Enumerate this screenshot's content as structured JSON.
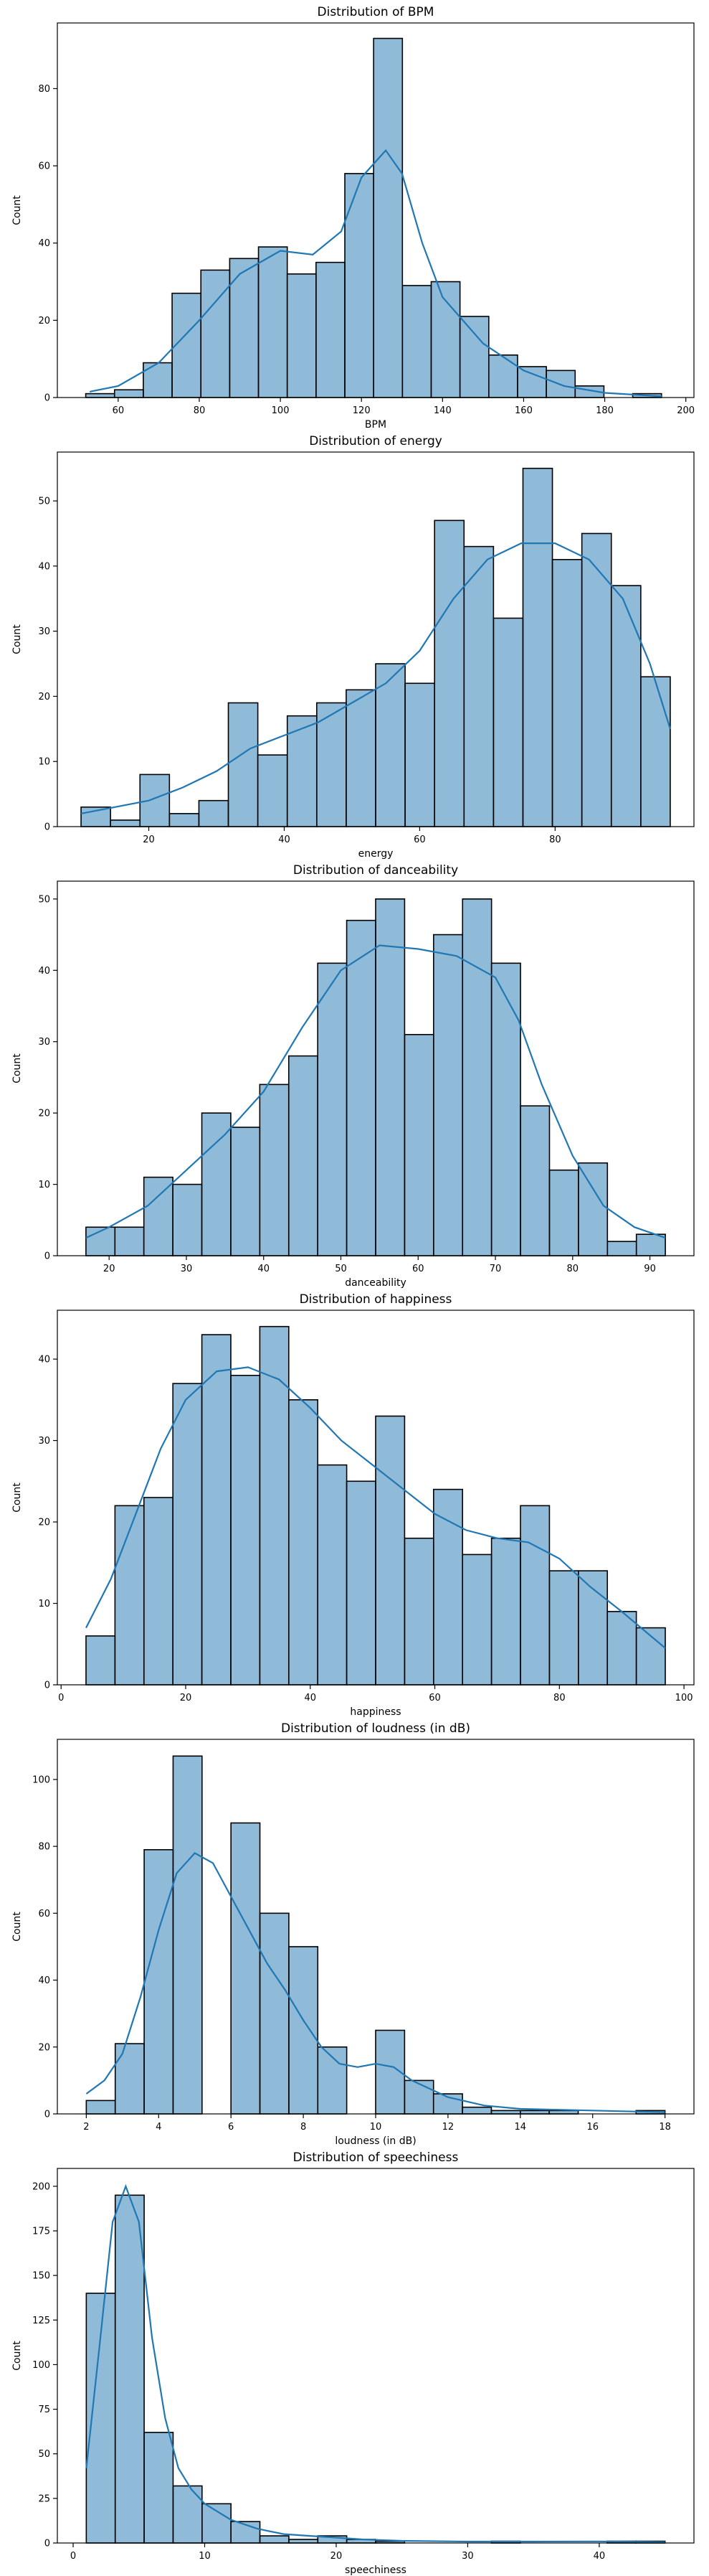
{
  "chart_data": [
    {
      "type": "bar",
      "title": "Distribution of BPM",
      "xlabel": "BPM",
      "ylabel": "Count",
      "xlim": [
        45,
        202
      ],
      "ylim": [
        0,
        97
      ],
      "xticks": [
        60,
        80,
        100,
        120,
        140,
        160,
        180,
        200
      ],
      "yticks": [
        0,
        20,
        40,
        60,
        80
      ],
      "bin_edges": [
        52,
        59.1,
        66.2,
        73.3,
        80.4,
        87.5,
        94.6,
        101.7,
        108.8,
        115.9,
        123,
        130.1,
        137.2,
        144.3,
        151.4,
        158.5,
        165.6,
        172.7,
        179.8,
        186.9,
        194
      ],
      "values": [
        1,
        2,
        9,
        27,
        33,
        36,
        39,
        32,
        35,
        58,
        93,
        29,
        30,
        21,
        11,
        8,
        7,
        3,
        0,
        1
      ],
      "kde": [
        [
          53,
          1.5
        ],
        [
          60,
          3
        ],
        [
          70,
          9
        ],
        [
          80,
          20
        ],
        [
          90,
          32
        ],
        [
          100,
          38
        ],
        [
          108,
          37
        ],
        [
          115,
          43
        ],
        [
          120,
          57
        ],
        [
          126,
          64
        ],
        [
          130,
          58
        ],
        [
          135,
          40
        ],
        [
          140,
          26
        ],
        [
          150,
          14
        ],
        [
          160,
          7
        ],
        [
          170,
          3
        ],
        [
          180,
          1.2
        ],
        [
          194,
          0.3
        ]
      ],
      "color": "#1f77b4"
    },
    {
      "type": "bar",
      "title": "Distribution of energy",
      "xlabel": "energy",
      "ylabel": "Count",
      "xlim": [
        6.5,
        100.5
      ],
      "ylim": [
        0,
        57.5
      ],
      "xticks": [
        20,
        40,
        60,
        80
      ],
      "yticks": [
        0,
        10,
        20,
        30,
        40,
        50
      ],
      "bin_edges": [
        10,
        14.35,
        18.7,
        23.05,
        27.4,
        31.75,
        36.1,
        40.45,
        44.8,
        49.15,
        53.5,
        57.85,
        62.2,
        66.55,
        70.9,
        75.25,
        79.6,
        83.95,
        88.3,
        92.65,
        97
      ],
      "values": [
        3,
        1,
        8,
        2,
        4,
        19,
        11,
        17,
        19,
        21,
        25,
        22,
        47,
        43,
        32,
        55,
        41,
        45,
        37,
        23
      ],
      "kde": [
        [
          10,
          2
        ],
        [
          15,
          3
        ],
        [
          20,
          4
        ],
        [
          25,
          6
        ],
        [
          30,
          8.5
        ],
        [
          35,
          12
        ],
        [
          40,
          14
        ],
        [
          45,
          16
        ],
        [
          50,
          19
        ],
        [
          55,
          22
        ],
        [
          60,
          27
        ],
        [
          65,
          35
        ],
        [
          70,
          41
        ],
        [
          75,
          43.5
        ],
        [
          80,
          43.5
        ],
        [
          85,
          41
        ],
        [
          90,
          35
        ],
        [
          94,
          25
        ],
        [
          97,
          15
        ]
      ],
      "color": "#1f77b4"
    },
    {
      "type": "bar",
      "title": "Distribution of danceability",
      "xlabel": "danceability",
      "ylabel": "Count",
      "xlim": [
        13.3,
        95.7
      ],
      "ylim": [
        0,
        52.5
      ],
      "xticks": [
        20,
        30,
        40,
        50,
        60,
        70,
        80,
        90
      ],
      "yticks": [
        0,
        10,
        20,
        30,
        40,
        50
      ],
      "bin_edges": [
        17,
        20.75,
        24.5,
        28.25,
        32,
        35.75,
        39.5,
        43.25,
        47,
        50.75,
        54.5,
        58.25,
        62,
        65.75,
        69.5,
        73.25,
        77,
        80.75,
        84.5,
        88.25,
        92
      ],
      "values": [
        4,
        4,
        11,
        10,
        20,
        18,
        24,
        28,
        41,
        47,
        50,
        31,
        45,
        50,
        41,
        21,
        12,
        13,
        2,
        3
      ],
      "kde": [
        [
          17,
          2.5
        ],
        [
          20,
          4
        ],
        [
          25,
          7
        ],
        [
          30,
          12
        ],
        [
          35,
          17
        ],
        [
          40,
          23
        ],
        [
          45,
          32
        ],
        [
          50,
          40
        ],
        [
          55,
          43.5
        ],
        [
          60,
          43
        ],
        [
          65,
          42
        ],
        [
          70,
          39
        ],
        [
          73,
          33
        ],
        [
          76,
          24
        ],
        [
          80,
          14
        ],
        [
          84,
          7
        ],
        [
          88,
          4
        ],
        [
          92,
          2.5
        ]
      ],
      "color": "#1f77b4"
    },
    {
      "type": "bar",
      "title": "Distribution of happiness",
      "xlabel": "happiness",
      "ylabel": "Count",
      "xlim": [
        -0.6,
        101.6
      ],
      "ylim": [
        0,
        46
      ],
      "xticks": [
        0,
        20,
        40,
        60,
        80,
        100
      ],
      "yticks": [
        0,
        10,
        20,
        30,
        40
      ],
      "bin_edges": [
        4,
        8.65,
        13.3,
        17.95,
        22.6,
        27.25,
        31.9,
        36.55,
        41.2,
        45.85,
        50.5,
        55.15,
        59.8,
        64.45,
        69.1,
        73.75,
        78.4,
        83.05,
        87.7,
        92.35,
        97
      ],
      "values": [
        6,
        22,
        23,
        37,
        43,
        38,
        44,
        35,
        27,
        25,
        33,
        18,
        24,
        16,
        18,
        22,
        14,
        14,
        9,
        7
      ],
      "kde": [
        [
          4,
          7
        ],
        [
          8,
          13
        ],
        [
          12,
          21
        ],
        [
          16,
          29
        ],
        [
          20,
          35
        ],
        [
          25,
          38.5
        ],
        [
          30,
          39
        ],
        [
          35,
          37.5
        ],
        [
          40,
          34
        ],
        [
          45,
          30
        ],
        [
          50,
          27
        ],
        [
          55,
          24
        ],
        [
          60,
          21
        ],
        [
          65,
          19
        ],
        [
          70,
          18
        ],
        [
          75,
          17.5
        ],
        [
          80,
          15.5
        ],
        [
          85,
          12
        ],
        [
          90,
          9
        ],
        [
          97,
          4.5
        ]
      ],
      "color": "#1f77b4"
    },
    {
      "type": "bar",
      "title": "Distribution of loudness (in dB)",
      "xlabel": "loudness (in dB)",
      "ylabel": "Count",
      "xlim": [
        1.2,
        18.8
      ],
      "ylim": [
        0,
        112
      ],
      "xticks": [
        2,
        4,
        6,
        8,
        10,
        12,
        14,
        16,
        18
      ],
      "yticks": [
        0,
        20,
        40,
        60,
        80,
        100
      ],
      "bin_edges": [
        2,
        2.8,
        3.6,
        4.4,
        5.2,
        6,
        6.8,
        7.6,
        8.4,
        9.2,
        10,
        10.8,
        11.6,
        12.4,
        13.2,
        14,
        14.8,
        15.6,
        16.4,
        17.2,
        18
      ],
      "values": [
        4,
        21,
        79,
        107,
        0,
        87,
        60,
        50,
        20,
        0,
        25,
        10,
        6,
        2,
        1,
        1,
        1,
        0,
        0,
        1
      ],
      "kde": [
        [
          2,
          6
        ],
        [
          2.5,
          10
        ],
        [
          3,
          18
        ],
        [
          3.5,
          35
        ],
        [
          4,
          55
        ],
        [
          4.5,
          72
        ],
        [
          5,
          78
        ],
        [
          5.5,
          75
        ],
        [
          6,
          65
        ],
        [
          6.5,
          55
        ],
        [
          7,
          45
        ],
        [
          7.5,
          37
        ],
        [
          8,
          28
        ],
        [
          8.5,
          20
        ],
        [
          9,
          15
        ],
        [
          9.5,
          14
        ],
        [
          10,
          15
        ],
        [
          10.5,
          14
        ],
        [
          11,
          10
        ],
        [
          12,
          5
        ],
        [
          13,
          2.5
        ],
        [
          14,
          1.5
        ],
        [
          16,
          1
        ],
        [
          18,
          0.5
        ]
      ],
      "color": "#1f77b4"
    },
    {
      "type": "bar",
      "title": "Distribution of speechiness",
      "xlabel": "speechiness",
      "ylabel": "Count",
      "xlim": [
        -1.2,
        47.2
      ],
      "ylim": [
        0,
        210
      ],
      "xticks": [
        0,
        10,
        20,
        30,
        40
      ],
      "yticks": [
        0,
        25,
        50,
        75,
        100,
        125,
        150,
        175,
        200
      ],
      "bin_edges": [
        1,
        3.2,
        5.4,
        7.6,
        9.8,
        12,
        14.2,
        16.4,
        18.6,
        20.8,
        23,
        25.2,
        27.4,
        29.6,
        31.8,
        34,
        36.2,
        38.4,
        40.6,
        42.8,
        45
      ],
      "values": [
        140,
        195,
        62,
        32,
        22,
        12,
        4,
        2,
        4,
        2,
        1,
        0,
        0,
        0,
        1,
        0,
        0,
        0,
        1,
        1
      ],
      "kde": [
        [
          1,
          42
        ],
        [
          2,
          110
        ],
        [
          3,
          180
        ],
        [
          4,
          200
        ],
        [
          5,
          180
        ],
        [
          6,
          115
        ],
        [
          7,
          70
        ],
        [
          8,
          42
        ],
        [
          9,
          30
        ],
        [
          10,
          22
        ],
        [
          12,
          13
        ],
        [
          14,
          8
        ],
        [
          16,
          5
        ],
        [
          18,
          4
        ],
        [
          20,
          3
        ],
        [
          22,
          2
        ],
        [
          25,
          1.2
        ],
        [
          30,
          0.8
        ],
        [
          35,
          0.8
        ],
        [
          40,
          0.9
        ],
        [
          45,
          0.5
        ]
      ],
      "color": "#1f77b4"
    }
  ]
}
